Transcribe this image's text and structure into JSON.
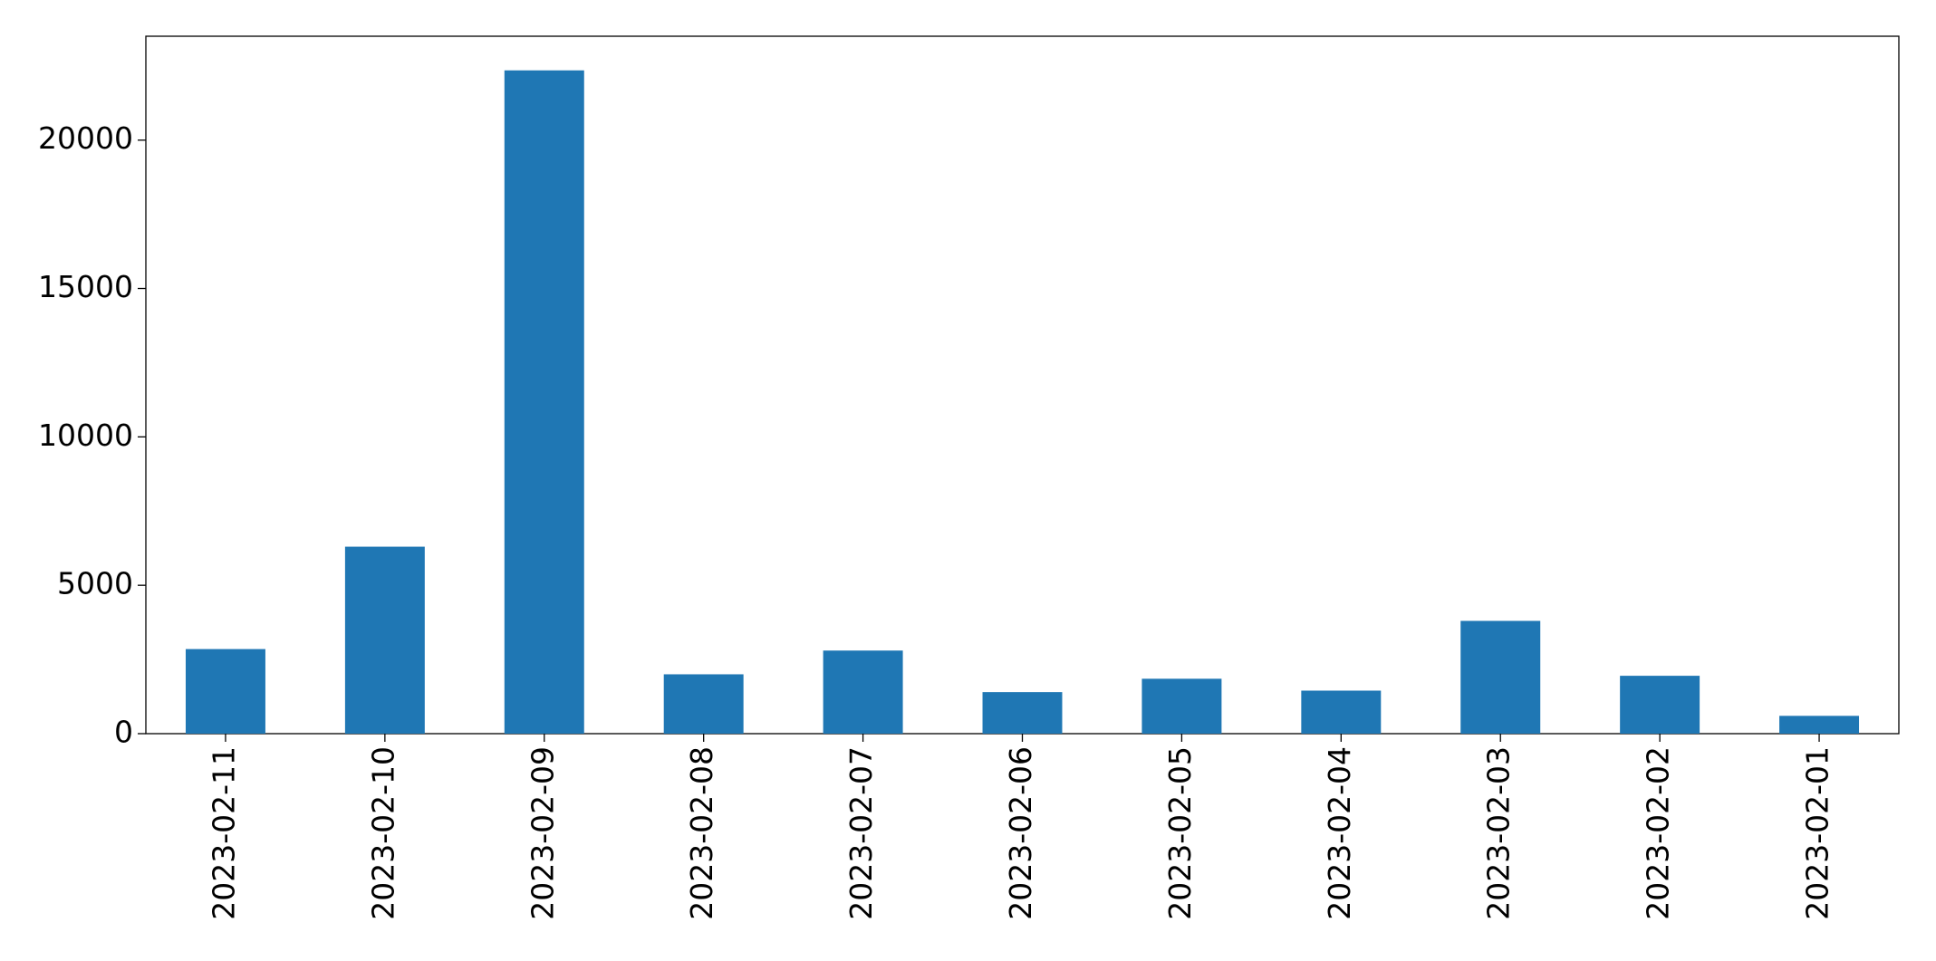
{
  "chart_data": {
    "type": "bar",
    "categories": [
      "2023-02-11",
      "2023-02-10",
      "2023-02-09",
      "2023-02-08",
      "2023-02-07",
      "2023-02-06",
      "2023-02-05",
      "2023-02-04",
      "2023-02-03",
      "2023-02-02",
      "2023-02-01"
    ],
    "values": [
      2850,
      6300,
      22350,
      2000,
      2800,
      1400,
      1850,
      1450,
      3800,
      1950,
      600
    ],
    "color": "#1f77b4",
    "ylim": [
      0,
      23500
    ],
    "yticks": [
      0,
      5000,
      10000,
      15000,
      20000
    ],
    "grid": false
  }
}
